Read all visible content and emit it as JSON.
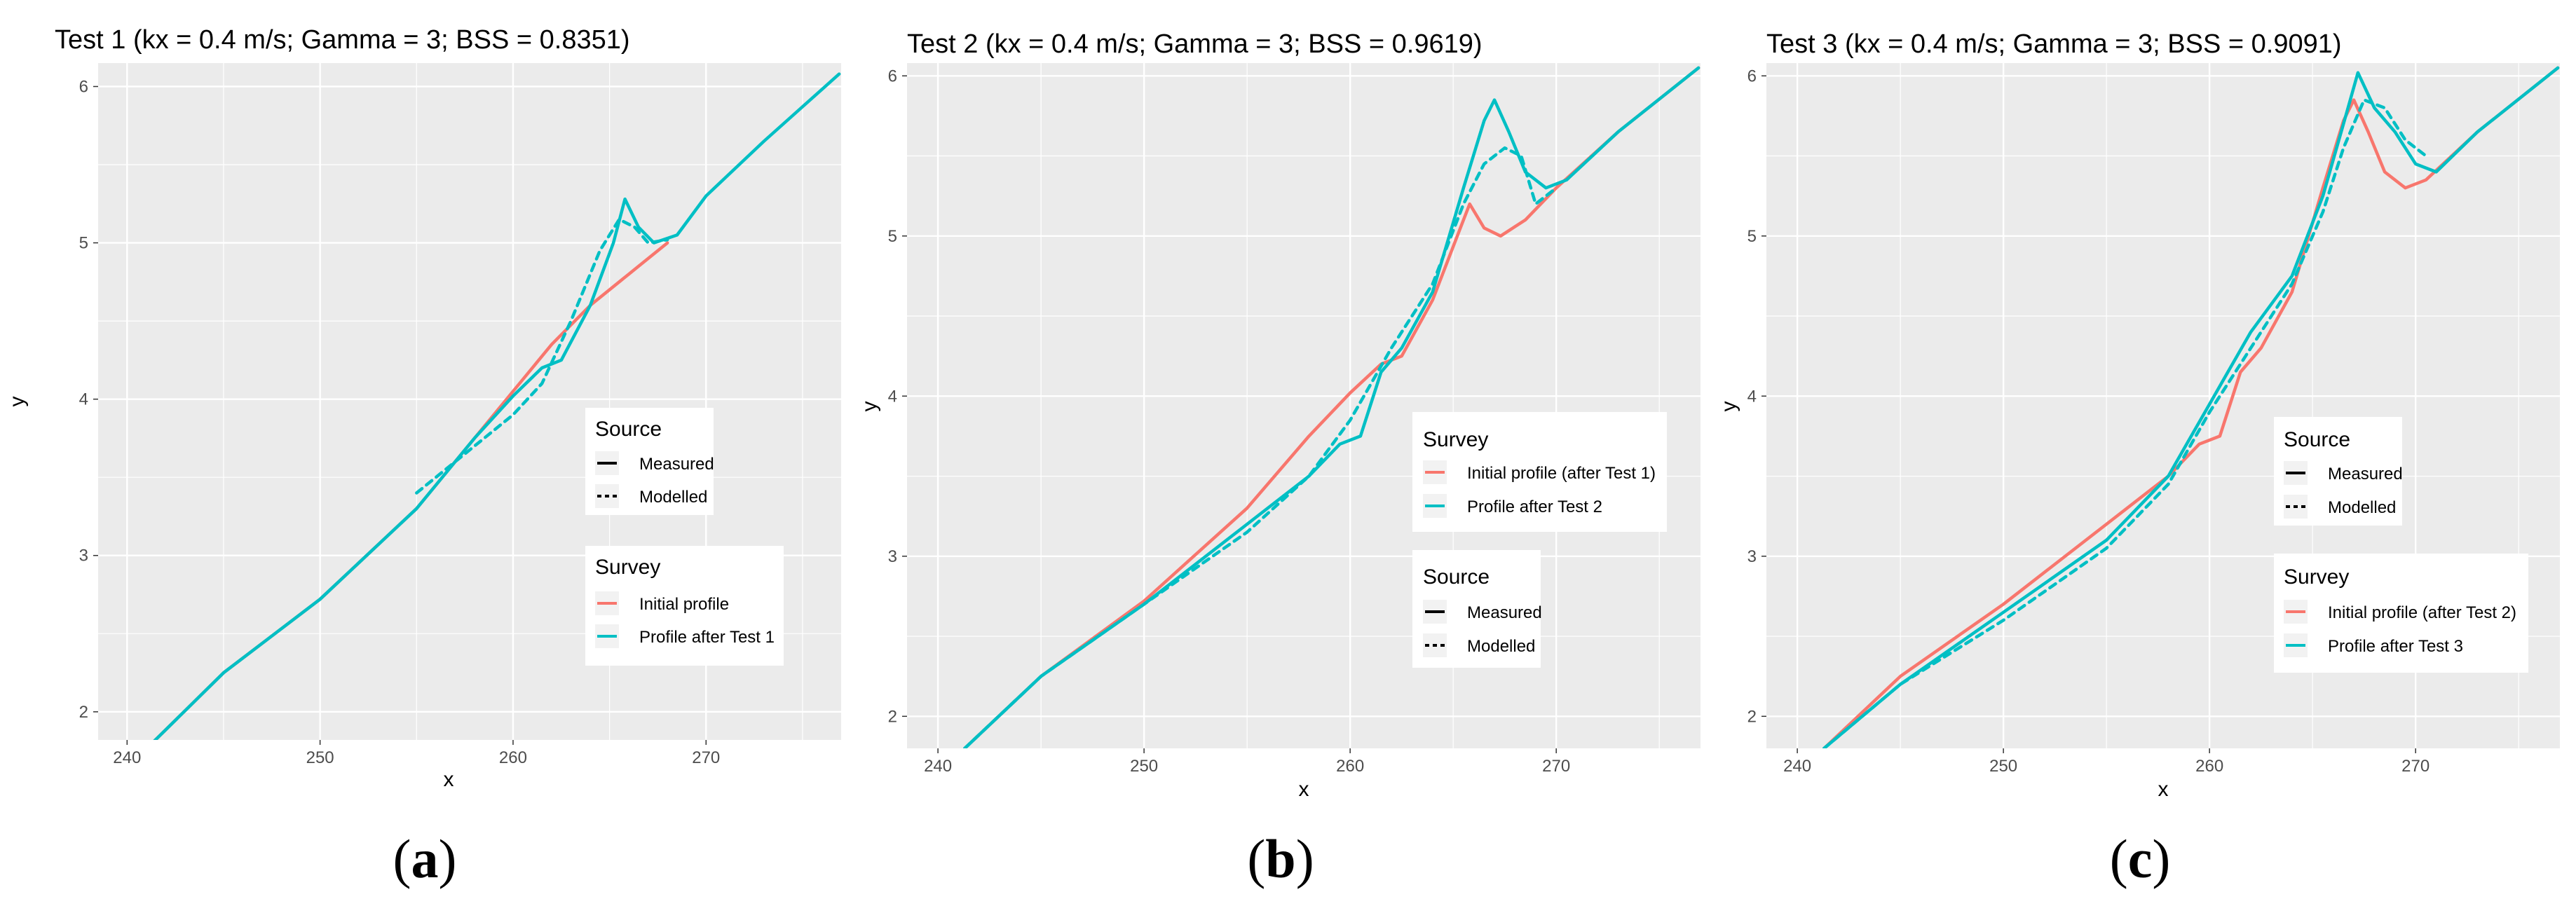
{
  "figure": {
    "background": "#ffffff",
    "panel_background": "#ebebeb",
    "grid_color": "#ffffff"
  },
  "colors": {
    "initial": "#F8766D",
    "after": "#00BFC4"
  },
  "chart_data": [
    {
      "type": "line",
      "title": "Test 1 (kx = 0.4 m/s; Gamma = 3; BSS = 0.8351)",
      "xlabel": "x",
      "ylabel": "y",
      "xlim": [
        238.5,
        277
      ],
      "ylim": [
        1.82,
        6.15
      ],
      "xticks": [
        240,
        250,
        260,
        270
      ],
      "yticks": [
        2,
        3,
        4,
        5,
        6
      ],
      "caption_open": "(",
      "caption_letter": "a",
      "caption_close": ")",
      "legends": [
        {
          "position": "middle-right-upper",
          "title": "Source",
          "kind": "linetype",
          "entries": [
            "Measured",
            "Modelled"
          ]
        },
        {
          "position": "middle-right-lower",
          "title": "Survey",
          "kind": "color",
          "entries": [
            "Initial profile",
            "Profile after Test 1"
          ]
        }
      ],
      "series": [
        {
          "name": "Initial profile",
          "source": "Measured",
          "color": "#F8766D",
          "dash": false,
          "x": [
            241.3,
            245,
            250,
            255,
            258,
            260,
            262,
            264,
            266,
            268
          ],
          "y": [
            1.8,
            2.25,
            2.72,
            3.3,
            3.75,
            4.05,
            4.35,
            4.6,
            4.8,
            5.0
          ]
        },
        {
          "name": "Profile after Test 1",
          "source": "Modelled",
          "color": "#00BFC4",
          "dash": true,
          "x": [
            255,
            258,
            260,
            261.5,
            263,
            264.5,
            265.5,
            266.3,
            267,
            268
          ],
          "y": [
            3.4,
            3.7,
            3.9,
            4.1,
            4.5,
            4.95,
            5.15,
            5.1,
            5.0,
            5.02
          ]
        },
        {
          "name": "Profile after Test 1",
          "source": "Measured",
          "color": "#00BFC4",
          "dash": false,
          "x": [
            241.3,
            245,
            250,
            255,
            258,
            260,
            261.5,
            262.5,
            264,
            265.2,
            265.8,
            266.5,
            267.3,
            268.5,
            270,
            273,
            276.9
          ],
          "y": [
            1.8,
            2.25,
            2.72,
            3.3,
            3.75,
            4.02,
            4.2,
            4.25,
            4.6,
            5.0,
            5.28,
            5.1,
            5.0,
            5.05,
            5.3,
            5.65,
            6.08
          ]
        }
      ]
    },
    {
      "type": "line",
      "title": "Test 2 (kx = 0.4 m/s; Gamma = 3; BSS = 0.9619)",
      "xlabel": "x",
      "ylabel": "y",
      "xlim": [
        238.5,
        277
      ],
      "ylim": [
        1.8,
        6.08
      ],
      "xticks": [
        240,
        250,
        260,
        270
      ],
      "yticks": [
        2,
        3,
        4,
        5,
        6
      ],
      "caption_open": "(",
      "caption_letter": "b",
      "caption_close": ")",
      "legends": [
        {
          "position": "middle-right-upper",
          "title": "Survey",
          "kind": "color",
          "entries": [
            "Initial profile (after Test 1)",
            "Profile after Test 2"
          ]
        },
        {
          "position": "middle-right-lower",
          "title": "Source",
          "kind": "linetype",
          "entries": [
            "Measured",
            "Modelled"
          ]
        }
      ],
      "series": [
        {
          "name": "Initial profile (after Test 1)",
          "source": "Measured",
          "color": "#F8766D",
          "dash": false,
          "x": [
            241.3,
            245,
            250,
            255,
            258,
            260,
            261.5,
            262.5,
            264,
            265.2,
            265.8,
            266.5,
            267.3,
            268.5,
            270,
            273,
            276.9
          ],
          "y": [
            1.8,
            2.25,
            2.72,
            3.3,
            3.75,
            4.02,
            4.2,
            4.25,
            4.6,
            5.0,
            5.2,
            5.05,
            5.0,
            5.1,
            5.3,
            5.65,
            6.05
          ]
        },
        {
          "name": "Profile after Test 2",
          "source": "Modelled",
          "color": "#00BFC4",
          "dash": true,
          "x": [
            241.3,
            245,
            250,
            255,
            258,
            260,
            262,
            264,
            265.5,
            266.5,
            267.5,
            268.3,
            269,
            270
          ],
          "y": [
            1.8,
            2.25,
            2.7,
            3.15,
            3.5,
            3.85,
            4.3,
            4.7,
            5.2,
            5.45,
            5.55,
            5.5,
            5.2,
            5.3
          ]
        },
        {
          "name": "Profile after Test 2",
          "source": "Measured",
          "color": "#00BFC4",
          "dash": false,
          "x": [
            241.3,
            245,
            250,
            255,
            258,
            259.5,
            260.5,
            261.5,
            262.5,
            264,
            265.5,
            266.5,
            267,
            267.7,
            268.5,
            269.5,
            270.5,
            273,
            276.9
          ],
          "y": [
            1.8,
            2.25,
            2.7,
            3.2,
            3.5,
            3.7,
            3.75,
            4.15,
            4.3,
            4.65,
            5.3,
            5.72,
            5.85,
            5.65,
            5.4,
            5.3,
            5.35,
            5.65,
            6.05
          ]
        }
      ]
    },
    {
      "type": "line",
      "title": "Test 3 (kx = 0.4 m/s; Gamma = 3; BSS = 0.9091)",
      "xlabel": "x",
      "ylabel": "y",
      "xlim": [
        238.5,
        277
      ],
      "ylim": [
        1.8,
        6.08
      ],
      "xticks": [
        240,
        250,
        260,
        270
      ],
      "yticks": [
        2,
        3,
        4,
        5,
        6
      ],
      "caption_open": "(",
      "caption_letter": "c",
      "caption_close": ")",
      "legends": [
        {
          "position": "middle-right-upper",
          "title": "Source",
          "kind": "linetype",
          "entries": [
            "Measured",
            "Modelled"
          ]
        },
        {
          "position": "middle-right-lower",
          "title": "Survey",
          "kind": "color",
          "entries": [
            "Initial profile (after Test 2)",
            "Profile after Test 3"
          ]
        }
      ],
      "series": [
        {
          "name": "Initial profile (after Test 2)",
          "source": "Measured",
          "color": "#F8766D",
          "dash": false,
          "x": [
            241.3,
            245,
            250,
            255,
            258,
            259.5,
            260.5,
            261.5,
            262.5,
            264,
            265.5,
            266.5,
            267,
            267.7,
            268.5,
            269.5,
            270.5,
            273,
            276.9
          ],
          "y": [
            1.8,
            2.25,
            2.7,
            3.2,
            3.5,
            3.7,
            3.75,
            4.15,
            4.3,
            4.65,
            5.3,
            5.72,
            5.85,
            5.65,
            5.4,
            5.3,
            5.35,
            5.65,
            6.05
          ]
        },
        {
          "name": "Profile after Test 3",
          "source": "Modelled",
          "color": "#00BFC4",
          "dash": true,
          "x": [
            241.3,
            245,
            250,
            255,
            258,
            260,
            262,
            264,
            265.5,
            266.5,
            267.5,
            268.5,
            269.5,
            270.5
          ],
          "y": [
            1.8,
            2.2,
            2.6,
            3.05,
            3.45,
            3.9,
            4.3,
            4.7,
            5.15,
            5.55,
            5.85,
            5.8,
            5.6,
            5.5
          ]
        },
        {
          "name": "Profile after Test 3",
          "source": "Measured",
          "color": "#00BFC4",
          "dash": false,
          "x": [
            241.3,
            245,
            250,
            255,
            258,
            260,
            262,
            264,
            265.5,
            266.5,
            267.2,
            268,
            269,
            270,
            271,
            273,
            276.9
          ],
          "y": [
            1.8,
            2.2,
            2.65,
            3.1,
            3.5,
            3.95,
            4.4,
            4.75,
            5.25,
            5.7,
            6.02,
            5.8,
            5.65,
            5.45,
            5.4,
            5.65,
            6.05
          ]
        }
      ]
    }
  ]
}
